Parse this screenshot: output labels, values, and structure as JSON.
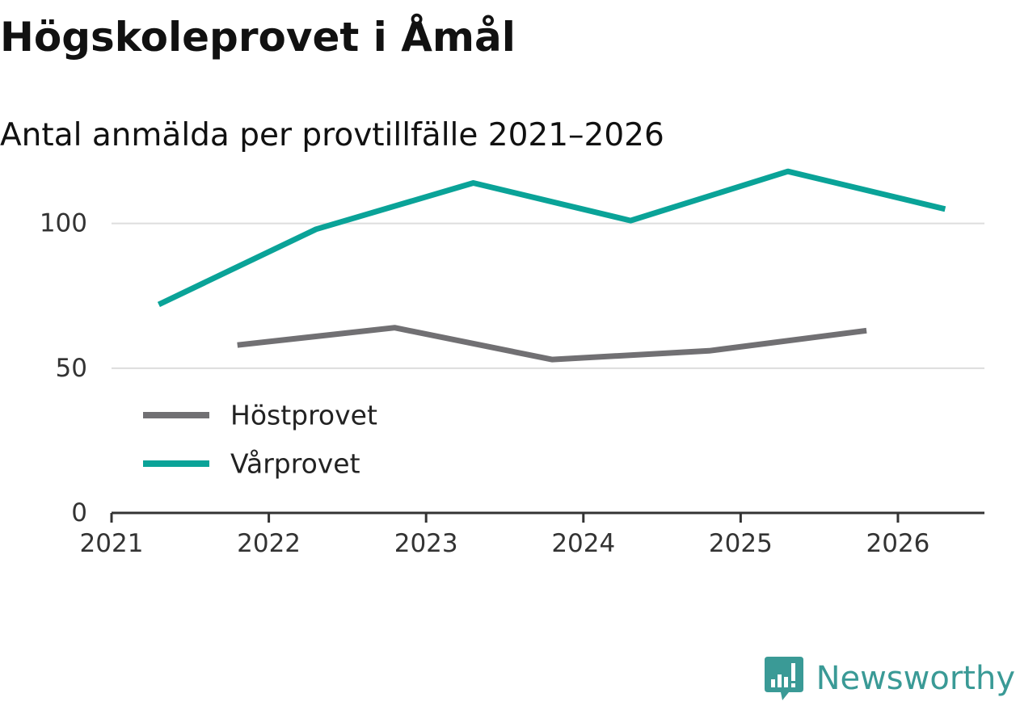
{
  "title": "Högskoleprovet i Åmål",
  "subtitle": "Antal anmälda per provtillfälle 2021–2026",
  "brand": {
    "name": "Newsworthy",
    "logo_icon": "newsworthy-logo-icon",
    "color": "#3a9a96"
  },
  "chart_data": {
    "type": "line",
    "title": "Högskoleprovet i Åmål",
    "subtitle": "Antal anmälda per provtillfälle 2021–2026",
    "xlabel": "",
    "ylabel": "",
    "xlim": [
      2021,
      2026.55
    ],
    "ylim": [
      0,
      120
    ],
    "x_ticks": [
      2021,
      2022,
      2023,
      2024,
      2025,
      2026
    ],
    "x_tick_labels": [
      "2021",
      "2022",
      "2023",
      "2024",
      "2025",
      "2026"
    ],
    "y_ticks": [
      0,
      50,
      100
    ],
    "y_tick_labels": [
      "0",
      "50",
      "100"
    ],
    "grid": true,
    "legend_position": "bottom-left",
    "series": [
      {
        "name": "Höstprovet",
        "color": "#717073",
        "x": [
          2021.8,
          2022.8,
          2023.8,
          2024.8,
          2025.8
        ],
        "values": [
          58,
          64,
          53,
          56,
          63
        ]
      },
      {
        "name": "Vårprovet",
        "color": "#0aa398",
        "x": [
          2021.3,
          2022.3,
          2023.3,
          2024.3,
          2025.3,
          2026.3
        ],
        "values": [
          72,
          98,
          114,
          101,
          118,
          105
        ]
      }
    ]
  }
}
